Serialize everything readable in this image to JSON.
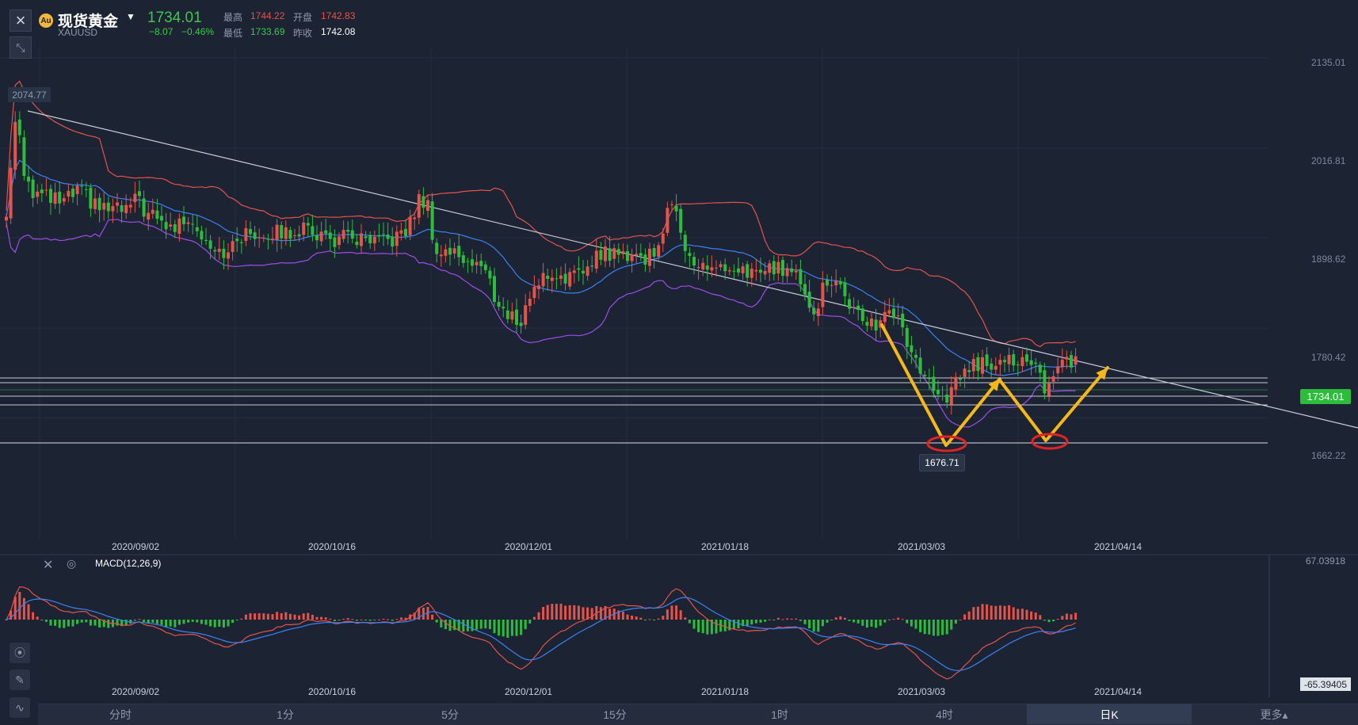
{
  "header": {
    "symbol_name": "现货黄金",
    "symbol_code": "XAUUSD",
    "last_price": "1734.01",
    "change": "−8.07",
    "change_pct": "−0.46%",
    "high_label": "最高",
    "high_value": "1744.22",
    "open_label": "开盘",
    "open_value": "1742.83",
    "low_label": "最低",
    "low_value": "1733.69",
    "prev_close_label": "昨收",
    "prev_close_value": "1742.08"
  },
  "price_axis": [
    "2135.01",
    "2016.81",
    "1898.62",
    "1780.42",
    "1662.22"
  ],
  "current_price_tag": "1734.01",
  "high_marker": "2074.77",
  "low_marker": "1676.71",
  "date_labels": [
    "2020/09/02",
    "2020/10/16",
    "2020/12/01",
    "2021/01/18",
    "2021/03/03",
    "2021/04/14"
  ],
  "macd": {
    "title": "MACD(12,26,9)",
    "top_value": "67.03918",
    "bottom_value": "-65.39405"
  },
  "tabs": [
    "分时",
    "1分",
    "5分",
    "15分",
    "1时",
    "4时",
    "日K",
    "更多▴"
  ],
  "active_tab": "日K",
  "colors": {
    "up": "#e5534b",
    "down": "#2dbd3c",
    "upper_band": "#e5534b",
    "mid_band": "#3b82f6",
    "lower_band": "#9d4ee8",
    "arrows": "#f6b818",
    "circles": "#e02424",
    "trendline": "#c8cdd6"
  },
  "chart_data": {
    "type": "candlestick",
    "title": "现货黄金 XAUUSD",
    "x_range": [
      "2020/08",
      "2021/04/14"
    ],
    "y_axis_ticks": [
      2135.01,
      2016.81,
      1898.62,
      1780.42,
      1662.22
    ],
    "indicators": [
      "Bollinger Bands",
      "MACD(12,26,9)"
    ],
    "last": 1734.01,
    "period_high": 2074.77,
    "period_low": 1676.71,
    "pattern": "double bottom (W)"
  }
}
